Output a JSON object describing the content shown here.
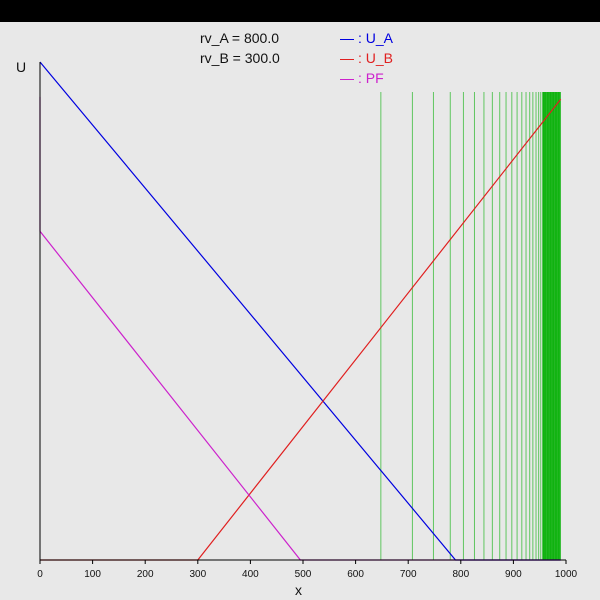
{
  "params": [
    {
      "label": "rv_A = 800.0"
    },
    {
      "label": "rv_B = 300.0"
    }
  ],
  "chart_data": {
    "type": "line",
    "title": "",
    "xlabel": "x",
    "ylabel": "U",
    "xlim": [
      0,
      1000
    ],
    "ylim": [
      0,
      1
    ],
    "grid": false,
    "legend_placement": "top-center",
    "x_ticks": [
      "0",
      "100",
      "200",
      "300",
      "400",
      "500",
      "600",
      "700",
      "800",
      "900",
      "1000"
    ],
    "series": [
      {
        "name": "U_A",
        "legend_label": ": U_A",
        "color": "#0000e0",
        "points": [
          [
            0,
            1.0
          ],
          [
            790,
            0.0
          ],
          [
            990,
            0.0
          ]
        ]
      },
      {
        "name": "U_B",
        "legend_label": ": U_B",
        "color": "#e02020",
        "points": [
          [
            0,
            0.0
          ],
          [
            300,
            0.0
          ],
          [
            990,
            0.925
          ]
        ]
      },
      {
        "name": "PF",
        "legend_label": ": PF",
        "color": "#cc22cc",
        "points": [
          [
            0,
            0.93
          ],
          [
            0,
            0.66
          ],
          [
            495,
            0.0
          ],
          [
            990,
            0.0
          ]
        ]
      }
    ],
    "vertical_lines": {
      "color": "#33bb33",
      "x": [
        648,
        708,
        748,
        780,
        805,
        826,
        844,
        860,
        874,
        886,
        897,
        907,
        916,
        924,
        931,
        937,
        943,
        948,
        952,
        956,
        960,
        963,
        966,
        969,
        972,
        975,
        978,
        981,
        984,
        987
      ]
    },
    "vertical_band": {
      "x_start": 955,
      "x_end": 990,
      "color": "#00b000"
    }
  }
}
